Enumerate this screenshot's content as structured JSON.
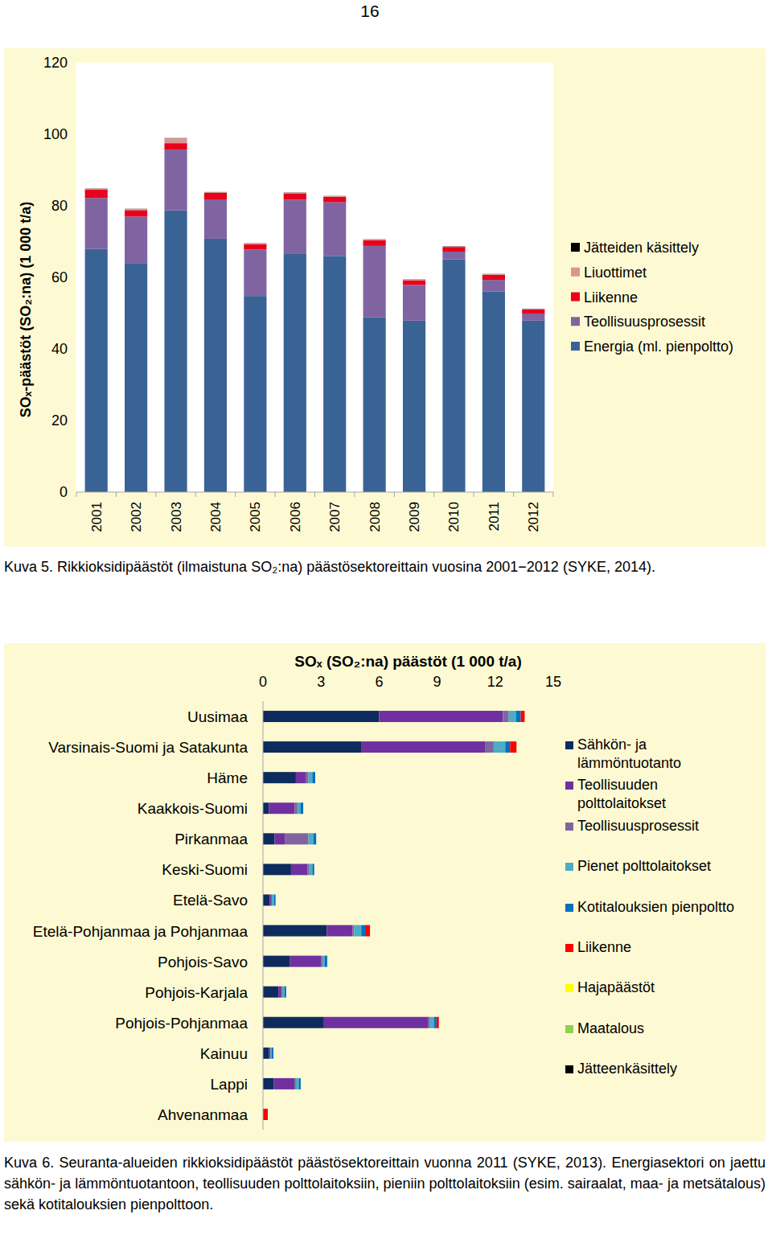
{
  "page": {
    "number": "16"
  },
  "chart_data": [
    {
      "type": "bar",
      "stacked": true,
      "y_label": "SOₓ-päästöt (SO₂:na)  (1 000 t/a)",
      "caption": "Kuva 5. Rikkioksidipäästöt (ilmaistuna SO₂:na) päästösektoreittain vuosina 2001−2012 (SYKE, 2014).",
      "categories": [
        "2001",
        "2002",
        "2003",
        "2004",
        "2005",
        "2006",
        "2007",
        "2008",
        "2009",
        "2010",
        "2011",
        "2012"
      ],
      "ylim": [
        0,
        120
      ],
      "yticks": [
        0,
        20,
        40,
        60,
        80,
        100,
        120
      ],
      "grid": false,
      "legend": "right",
      "series": [
        {
          "name": "Energia (ml. pienpoltto)",
          "color": "#3a6395",
          "values": [
            68,
            64,
            78.7,
            70.8,
            54.8,
            66.7,
            66,
            48.8,
            47.9,
            65,
            56,
            47.9
          ]
        },
        {
          "name": "Teollisuusprosessit",
          "color": "#8064a2",
          "values": [
            14.2,
            13,
            17,
            11,
            13,
            15,
            15,
            20,
            10,
            2.2,
            3.3,
            2
          ]
        },
        {
          "name": "Liikenne",
          "color": "#e8001c",
          "values": [
            2.3,
            1.8,
            1.8,
            1.8,
            1.5,
            1.8,
            1.5,
            1.6,
            1.3,
            1.3,
            1.4,
            1.1
          ]
        },
        {
          "name": "Liuottimet",
          "color": "#d99694",
          "values": [
            0.3,
            0.3,
            1.4,
            0.2,
            0.2,
            0.2,
            0.2,
            0.2,
            0.2,
            0.2,
            0.2,
            0.2
          ]
        },
        {
          "name": "Jätteiden käsittely",
          "color": "#000000",
          "values": [
            0.05,
            0.05,
            0.05,
            0.05,
            0.05,
            0.05,
            0.05,
            0.05,
            0.05,
            0.05,
            0.05,
            0.05
          ]
        }
      ]
    },
    {
      "type": "bar",
      "stacked": true,
      "orientation": "horizontal",
      "title": "SOₓ (SO₂:na)  päästöt (1 000 t/a)",
      "caption": "Kuva 6. Seuranta-alueiden rikkioksidipäästöt päästösektoreittain vuonna 2011 (SYKE, 2013). Energiasektori on jaettu sähkön- ja lämmöntuotantoon, teollisuuden polttolaitoksiin, pieniin polttolaitoksiin (esim. sairaalat, maa- ja metsätalous) sekä kotitalouksien pienpolttoon.",
      "categories": [
        "Uusimaa",
        "Varsinais-Suomi ja Satakunta",
        "Häme",
        "Kaakkois-Suomi",
        "Pirkanmaa",
        "Keski-Suomi",
        "Etelä-Savo",
        "Etelä-Pohjanmaa ja Pohjanmaa",
        "Pohjois-Savo",
        "Pohjois-Karjala",
        "Pohjois-Pohjanmaa",
        "Kainuu",
        "Lappi",
        "Ahvenanmaa"
      ],
      "xlim": [
        0,
        15
      ],
      "xticks": [
        0,
        3,
        6,
        9,
        12,
        15
      ],
      "grid": false,
      "legend": "right",
      "series": [
        {
          "name": "Sähkön- ja lämmöntuotanto",
          "color": "#0d2b5c",
          "values": [
            6,
            5.07,
            1.7,
            0.3,
            0.6,
            1.45,
            0.35,
            3.3,
            1.4,
            0.8,
            3.15,
            0.3,
            0.55,
            0
          ]
        },
        {
          "name": "Teollisuuden polttolaitokset",
          "color": "#7030a0",
          "values": [
            6.4,
            6.4,
            0.5,
            1.33,
            0.55,
            0.85,
            0.1,
            1.33,
            1.6,
            0.15,
            5.4,
            0.08,
            1.1,
            0
          ]
        },
        {
          "name": "Teollisuusprosessit",
          "color": "#8064a2",
          "values": [
            0.3,
            0.45,
            0.15,
            0.15,
            1.2,
            0.1,
            0,
            0.08,
            0.08,
            0.05,
            0.05,
            0,
            0.05,
            0
          ]
        },
        {
          "name": "Pienet polttolaitokset",
          "color": "#4bacc6",
          "values": [
            0.37,
            0.6,
            0.2,
            0.15,
            0.25,
            0.15,
            0.12,
            0.37,
            0.12,
            0.12,
            0.25,
            0.08,
            0.15,
            0
          ]
        },
        {
          "name": "Kotitalouksien pienpoltto",
          "color": "#0070c0",
          "values": [
            0.25,
            0.25,
            0.15,
            0.15,
            0.15,
            0.1,
            0.08,
            0.2,
            0.12,
            0.08,
            0.12,
            0.08,
            0.1,
            0
          ]
        },
        {
          "name": "Liikenne",
          "color": "#ff0000",
          "values": [
            0.2,
            0.33,
            0,
            0,
            0,
            0,
            0,
            0.25,
            0,
            0,
            0.12,
            0,
            0,
            0.25
          ]
        },
        {
          "name": "Hajapäästöt",
          "color": "#ffff00",
          "values": [
            0,
            0,
            0,
            0,
            0,
            0,
            0,
            0,
            0,
            0,
            0,
            0,
            0,
            0
          ]
        },
        {
          "name": "Maatalous",
          "color": "#92d050",
          "values": [
            0,
            0,
            0,
            0,
            0,
            0,
            0,
            0,
            0,
            0,
            0,
            0,
            0,
            0
          ]
        },
        {
          "name": "Jätteenkäsittely",
          "color": "#000000",
          "values": [
            0,
            0,
            0,
            0,
            0,
            0,
            0,
            0,
            0,
            0,
            0,
            0,
            0,
            0
          ]
        }
      ]
    }
  ]
}
